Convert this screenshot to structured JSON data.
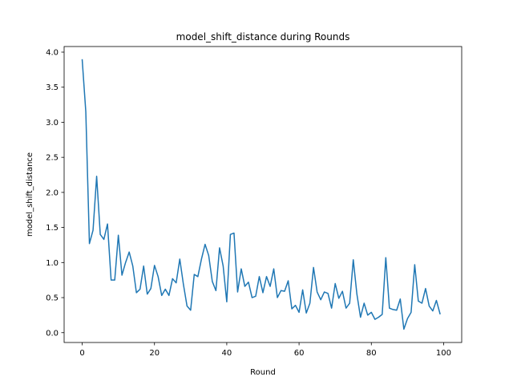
{
  "chart_data": {
    "type": "line",
    "title": "model_shift_distance during Rounds",
    "xlabel": "Round",
    "ylabel": "model_shift_distance",
    "xlim": [
      -5,
      105
    ],
    "ylim": [
      -0.14,
      4.08
    ],
    "xticks": [
      0,
      20,
      40,
      60,
      80,
      100
    ],
    "yticks": [
      0.0,
      0.5,
      1.0,
      1.5,
      2.0,
      2.5,
      3.0,
      3.5,
      4.0
    ],
    "xtick_labels": [
      "0",
      "20",
      "40",
      "60",
      "80",
      "100"
    ],
    "ytick_labels": [
      "0.0",
      "0.5",
      "1.0",
      "1.5",
      "2.0",
      "2.5",
      "3.0",
      "3.5",
      "4.0"
    ],
    "grid": false,
    "legend": "none",
    "series": [
      {
        "color": "#1f77b4",
        "x": [
          0,
          1,
          2,
          3,
          4,
          5,
          6,
          7,
          8,
          9,
          10,
          11,
          12,
          13,
          14,
          15,
          16,
          17,
          18,
          19,
          20,
          21,
          22,
          23,
          24,
          25,
          26,
          27,
          28,
          29,
          30,
          31,
          32,
          33,
          34,
          35,
          36,
          37,
          38,
          39,
          40,
          41,
          42,
          43,
          44,
          45,
          46,
          47,
          48,
          49,
          50,
          51,
          52,
          53,
          54,
          55,
          56,
          57,
          58,
          59,
          60,
          61,
          62,
          63,
          64,
          65,
          66,
          67,
          68,
          69,
          70,
          71,
          72,
          73,
          74,
          75,
          76,
          77,
          78,
          79,
          80,
          81,
          82,
          83,
          84,
          85,
          86,
          87,
          88,
          89,
          90,
          91,
          92,
          93,
          94,
          95,
          96,
          97,
          98,
          99
        ],
        "values": [
          3.89,
          3.15,
          1.27,
          1.46,
          2.23,
          1.4,
          1.33,
          1.55,
          0.75,
          0.75,
          1.39,
          0.82,
          1.0,
          1.15,
          0.95,
          0.57,
          0.62,
          0.95,
          0.55,
          0.63,
          0.96,
          0.8,
          0.53,
          0.62,
          0.53,
          0.77,
          0.71,
          1.05,
          0.69,
          0.38,
          0.32,
          0.83,
          0.8,
          1.05,
          1.26,
          1.1,
          0.73,
          0.6,
          1.21,
          0.95,
          0.44,
          1.4,
          1.42,
          0.58,
          0.91,
          0.66,
          0.72,
          0.5,
          0.52,
          0.8,
          0.57,
          0.8,
          0.66,
          0.91,
          0.5,
          0.6,
          0.59,
          0.74,
          0.34,
          0.39,
          0.29,
          0.61,
          0.28,
          0.42,
          0.93,
          0.58,
          0.47,
          0.58,
          0.56,
          0.35,
          0.7,
          0.49,
          0.59,
          0.35,
          0.42,
          1.04,
          0.55,
          0.22,
          0.42,
          0.25,
          0.29,
          0.19,
          0.22,
          0.26,
          1.07,
          0.35,
          0.33,
          0.32,
          0.48,
          0.05,
          0.2,
          0.29,
          0.97,
          0.45,
          0.42,
          0.63,
          0.38,
          0.31,
          0.46,
          0.27
        ]
      }
    ]
  }
}
